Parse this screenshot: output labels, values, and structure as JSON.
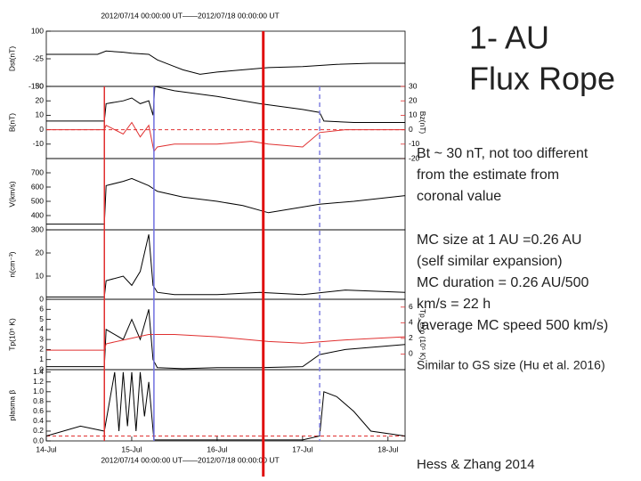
{
  "slide": {
    "title": [
      "1- AU",
      "Flux Rope"
    ],
    "notes": [
      [
        "Bt ~ 30 nT, not too different",
        "from the estimate from",
        "coronal value"
      ],
      [
        "MC size at 1 AU =0.26 AU",
        "(self similar expansion)",
        "MC duration = 0.26 AU/500",
        "km/s = 22 h",
        "(average MC speed 500 km/s)"
      ]
    ],
    "remark": "Similar to GS size (Hu et al. 2016)",
    "citation": "Hess & Zhang 2014"
  },
  "event_lines": [
    {
      "x": 14.68,
      "color": "#e03030",
      "width": 1.5,
      "dashed": false,
      "full_height": false
    },
    {
      "x": 15.26,
      "color": "#7070e0",
      "width": 1.5,
      "dashed": false,
      "full_height": false
    },
    {
      "x": 16.54,
      "color": "#e01010",
      "width": 3,
      "dashed": false,
      "full_height": true
    },
    {
      "x": 17.2,
      "color": "#8080e0",
      "width": 1.5,
      "dashed": true,
      "full_height": false
    }
  ],
  "chart_data": [
    {
      "type": "line",
      "title": "2012/07/14 00:00:00 UT——2012/07/18 00:00:00 UT",
      "ylabel": "Dst(nT)",
      "xlim": [
        14,
        18.2
      ],
      "ylim": [
        -150,
        100
      ],
      "yticks": [
        100,
        -25,
        -150
      ],
      "series": [
        {
          "color": "#000000",
          "x": [
            14,
            14.6,
            14.7,
            14.9,
            15.0,
            15.2,
            15.3,
            15.5,
            15.6,
            15.8,
            16,
            16.3,
            16.6,
            17,
            17.4,
            17.8,
            18.2
          ],
          "values": [
            -5,
            -5,
            10,
            5,
            0,
            -5,
            -30,
            -60,
            -75,
            -95,
            -85,
            -75,
            -65,
            -60,
            -50,
            -45,
            -45
          ]
        }
      ]
    },
    {
      "type": "line",
      "ylabel": "B(nT)",
      "y2label": "Bz(nT)",
      "xlim": [
        14,
        18.2
      ],
      "ylim": [
        -20,
        30
      ],
      "yticks": [
        30,
        20,
        10,
        0,
        -10
      ],
      "y2lim": [
        -20,
        30
      ],
      "y2ticks": [
        30,
        20,
        10,
        0,
        -10,
        -20
      ],
      "ref_lines": [
        {
          "value": 0,
          "color": "#e03030",
          "dashed": true
        }
      ],
      "series": [
        {
          "color": "#000000",
          "x": [
            14,
            14.68,
            14.7,
            14.9,
            15.0,
            15.1,
            15.2,
            15.25,
            15.27,
            15.5,
            16,
            16.5,
            17,
            17.2,
            17.25,
            17.6,
            18,
            18.2
          ],
          "values": [
            6,
            6,
            18,
            20,
            22,
            18,
            20,
            10,
            30,
            27,
            23,
            18,
            14,
            12,
            6,
            5,
            5,
            5
          ]
        },
        {
          "color": "#e03030",
          "axis": "y2",
          "x": [
            14,
            14.68,
            14.7,
            14.9,
            15.0,
            15.1,
            15.2,
            15.26,
            15.3,
            15.5,
            16,
            16.4,
            16.6,
            17,
            17.2,
            17.5,
            18.2
          ],
          "values": [
            0,
            0,
            3,
            -3,
            5,
            -5,
            3,
            -15,
            -12,
            -10,
            -10,
            -8,
            -10,
            -12,
            -2,
            0,
            0
          ]
        }
      ]
    },
    {
      "type": "line",
      "ylabel": "V(km/s)",
      "xlim": [
        14,
        18.2
      ],
      "ylim": [
        300,
        800
      ],
      "yticks": [
        700,
        600,
        500,
        400,
        300
      ],
      "series": [
        {
          "color": "#000000",
          "x": [
            14,
            14.68,
            14.7,
            14.9,
            15.0,
            15.2,
            15.3,
            15.6,
            16,
            16.3,
            16.6,
            16.9,
            17.2,
            17.6,
            18.2
          ],
          "values": [
            340,
            340,
            610,
            640,
            660,
            610,
            570,
            530,
            500,
            470,
            420,
            450,
            480,
            500,
            540
          ]
        }
      ]
    },
    {
      "type": "line",
      "ylabel": "n(cm⁻³)",
      "xlim": [
        14,
        18.2
      ],
      "ylim": [
        0,
        30
      ],
      "yticks": [
        20,
        10,
        0
      ],
      "series": [
        {
          "color": "#000000",
          "x": [
            14,
            14.68,
            14.7,
            14.9,
            15.0,
            15.1,
            15.15,
            15.2,
            15.25,
            15.3,
            15.5,
            16,
            16.5,
            17,
            17.5,
            18.2
          ],
          "values": [
            1,
            1,
            8,
            10,
            6,
            12,
            20,
            28,
            6,
            3,
            2,
            2,
            3,
            2,
            4,
            3
          ]
        }
      ]
    },
    {
      "type": "line",
      "ylabel": "Tp(10⁵ K)",
      "y2label": "Tp_exp (10⁵ K)",
      "xlim": [
        14,
        18.2
      ],
      "ylim": [
        0,
        7
      ],
      "yticks": [
        6,
        5,
        4,
        3,
        2,
        1,
        0
      ],
      "y2lim": [
        -2,
        7
      ],
      "y2ticks": [
        6,
        4,
        2,
        0
      ],
      "series": [
        {
          "color": "#000000",
          "x": [
            14,
            14.68,
            14.7,
            14.9,
            15.0,
            15.1,
            15.2,
            15.25,
            15.3,
            15.6,
            16,
            16.5,
            17,
            17.2,
            17.5,
            18.2
          ],
          "values": [
            0.3,
            0.3,
            4,
            3,
            5,
            3,
            6,
            1,
            0.2,
            0.1,
            0.2,
            0.2,
            0.3,
            1.5,
            2,
            2.5
          ]
        },
        {
          "color": "#e03030",
          "axis": "y2",
          "x": [
            14,
            14.68,
            14.7,
            15.2,
            15.5,
            16,
            16.6,
            17,
            17.5,
            18.2
          ],
          "values": [
            0.5,
            0.5,
            1.3,
            2.5,
            2.5,
            2.2,
            1.6,
            1.4,
            1.8,
            2.2
          ]
        }
      ]
    },
    {
      "type": "line",
      "ylabel": "plasma β",
      "xlim": [
        14,
        18.2
      ],
      "ylim": [
        0,
        1.45
      ],
      "yticks": [
        1.4,
        1.2,
        {
          "value": 1,
          "label": "1.0"
        },
        0.8,
        0.6,
        0.4,
        0.2,
        {
          "value": 0,
          "label": "0.0"
        }
      ],
      "xticks": [
        {
          "value": 14,
          "label": "14-Jul"
        },
        {
          "value": 15,
          "label": "15-Jul"
        },
        {
          "value": 16,
          "label": "16-Jul"
        },
        {
          "value": 17,
          "label": "17-Jul"
        },
        {
          "value": 18,
          "label": "18-Jul"
        }
      ],
      "xlabel": "2012/07/14 00:00:00 UT——2012/07/18 00:00:00 UT",
      "ref_lines": [
        {
          "value": 0.1,
          "color": "#e03030",
          "dashed": true
        }
      ],
      "series": [
        {
          "color": "#000000",
          "x": [
            14,
            14.4,
            14.68,
            14.8,
            14.85,
            14.9,
            14.95,
            15.0,
            15.05,
            15.1,
            15.15,
            15.2,
            15.26,
            15.3,
            16,
            17,
            17.2,
            17.25,
            17.4,
            17.6,
            17.8,
            18.2
          ],
          "values": [
            0.1,
            0.3,
            0.2,
            1.4,
            0.2,
            1.4,
            0.3,
            1.4,
            0.2,
            1.4,
            0.5,
            1.2,
            0.02,
            0.02,
            0.02,
            0.02,
            0.1,
            1.0,
            0.9,
            0.6,
            0.2,
            0.1
          ]
        }
      ]
    }
  ]
}
